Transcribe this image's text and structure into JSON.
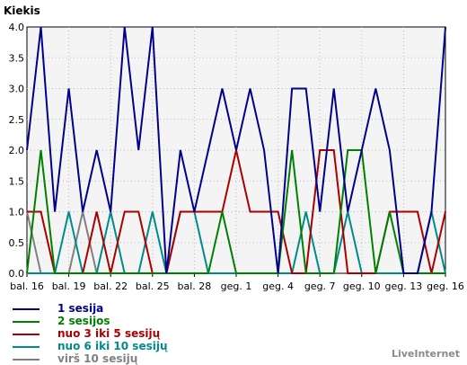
{
  "chart_data": {
    "type": "line",
    "ylabel": "Kiekis",
    "ylim": [
      0,
      4
    ],
    "y_ticks": [
      "0.0",
      "0.5",
      "1.0",
      "1.5",
      "2.0",
      "2.5",
      "3.0",
      "3.5",
      "4.0"
    ],
    "x_ticks": [
      "bal. 16",
      "bal. 19",
      "bal. 22",
      "bal. 25",
      "bal. 28",
      "geg. 1",
      "geg. 4",
      "geg. 7",
      "geg. 10",
      "geg. 13",
      "geg. 16"
    ],
    "x_dates": [
      "Apr 16",
      "Apr 17",
      "Apr 18",
      "Apr 19",
      "Apr 20",
      "Apr 21",
      "Apr 22",
      "Apr 23",
      "Apr 24",
      "Apr 25",
      "Apr 26",
      "Apr 27",
      "Apr 28",
      "Apr 29",
      "Apr 30",
      "May 1",
      "May 2",
      "May 3",
      "May 4",
      "May 5",
      "May 6",
      "May 7",
      "May 8",
      "May 9",
      "May 10",
      "May 11",
      "May 12",
      "May 13",
      "May 14",
      "May 15",
      "May 16"
    ],
    "grid": true,
    "legend_position": "bottom-left",
    "series": [
      {
        "name": "1 sesija",
        "color": "#00008b",
        "values": [
          2,
          4,
          1,
          3,
          1,
          2,
          1,
          4,
          2,
          4,
          0,
          2,
          1,
          2,
          3,
          2,
          3,
          2,
          0,
          3,
          3,
          1,
          3,
          1,
          2,
          3,
          2,
          0,
          0,
          1,
          4
        ]
      },
      {
        "name": "2 sesijos",
        "color": "#008000",
        "values": [
          0,
          2,
          0,
          0,
          0,
          0,
          0,
          0,
          0,
          0,
          0,
          0,
          0,
          0,
          1,
          0,
          0,
          0,
          0,
          2,
          0,
          0,
          0,
          2,
          2,
          0,
          1,
          0,
          0,
          0,
          0
        ]
      },
      {
        "name": "nuo 3 iki 5 sesijų",
        "color": "#aa0000",
        "values": [
          1,
          1,
          0,
          0,
          0,
          1,
          0,
          1,
          1,
          0,
          0,
          1,
          1,
          1,
          1,
          2,
          1,
          1,
          1,
          0,
          0,
          2,
          2,
          0,
          0,
          0,
          1,
          1,
          1,
          0,
          1
        ]
      },
      {
        "name": "nuo 6 iki 10 sesijų",
        "color": "#008b8b",
        "values": [
          0,
          0,
          0,
          1,
          0,
          0,
          1,
          0,
          0,
          1,
          0,
          1,
          1,
          0,
          0,
          0,
          0,
          0,
          0,
          0,
          1,
          0,
          0,
          1,
          0,
          0,
          0,
          0,
          0,
          1,
          0
        ]
      },
      {
        "name": "virš 10 sesijų",
        "color": "#808080",
        "values": [
          1,
          0,
          0,
          0,
          1,
          0,
          0,
          0,
          0,
          0,
          0,
          0,
          0,
          0,
          0,
          0,
          0,
          0,
          0,
          0,
          0,
          0,
          0,
          0,
          0,
          0,
          0,
          0,
          0,
          0,
          0
        ]
      }
    ]
  },
  "branding": {
    "label": "LiveInternet"
  }
}
